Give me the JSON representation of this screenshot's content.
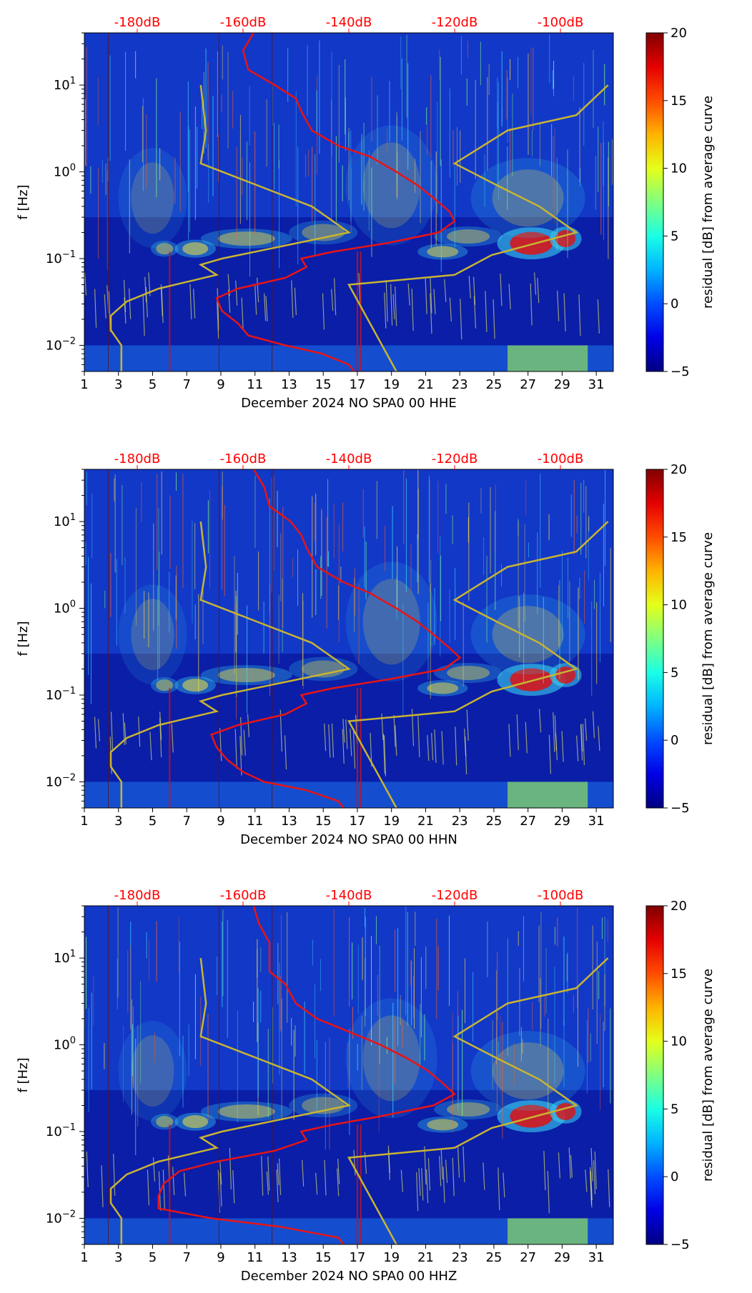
{
  "figure": {
    "colorbar_ticks": [
      "−5",
      "0",
      "5",
      "10",
      "15",
      "20"
    ],
    "y_ticks": [
      {
        "base": "10",
        "exp": "−2"
      },
      {
        "base": "10",
        "exp": "−1"
      },
      {
        "base": "10",
        "exp": "0"
      },
      {
        "base": "10",
        "exp": "1"
      }
    ],
    "colors": {
      "psd_curve": "#e81414",
      "noise_model": "#c8b432",
      "top_axis_label": "#ff0000"
    }
  },
  "chart_data": [
    {
      "type": "heatmap",
      "title": "",
      "xlabel": "December 2024 NO SPA0 00 HHE",
      "ylabel": "f [Hz]",
      "colorbar_label": "residual [dB] from average curve",
      "clim": [
        -5,
        20
      ],
      "xlim": [
        1,
        32
      ],
      "ylim": [
        0.005,
        40
      ],
      "yscale": "log",
      "x_tick_labels": [
        "1",
        "3",
        "5",
        "7",
        "9",
        "11",
        "13",
        "15",
        "17",
        "19",
        "21",
        "23",
        "25",
        "27",
        "29",
        "31"
      ],
      "top_axis_labels": [
        "-180dB",
        "-160dB",
        "-140dB",
        "-120dB",
        "-100dB"
      ],
      "top_axis_db_range": [
        -190,
        -90
      ],
      "psd_curve": {
        "freq": [
          40,
          25,
          15,
          10,
          7,
          5,
          3,
          2,
          1.5,
          1,
          0.7,
          0.5,
          0.35,
          0.27,
          0.2,
          0.15,
          0.12,
          0.1,
          0.08,
          0.06,
          0.045,
          0.035,
          0.025,
          0.018,
          0.013,
          0.01,
          0.008,
          0.006,
          0.005
        ],
        "db": [
          -158,
          -160,
          -159,
          -154,
          -150,
          -149,
          -147,
          -142,
          -136,
          -131,
          -127,
          -124,
          -121,
          -120,
          -123,
          -133,
          -143,
          -149,
          -148,
          -152,
          -161,
          -165,
          -164,
          -161,
          -159,
          -152,
          -145,
          -140,
          -139
        ]
      },
      "noise_models": [
        {
          "name": "low",
          "freq": [
            10,
            3,
            1.25,
            0.4,
            0.2,
            0.1,
            0.085,
            0.065,
            0.045,
            0.032,
            0.022,
            0.015,
            0.01,
            0.005
          ],
          "db": [
            -168,
            -167,
            -168,
            -147,
            -140,
            -164,
            -168,
            -165,
            -176,
            -182,
            -185,
            -185,
            -183,
            -183
          ]
        },
        {
          "name": "high",
          "freq": [
            10,
            4.5,
            3,
            1.25,
            0.7,
            0.4,
            0.2,
            0.11,
            0.065,
            0.05,
            0.005
          ],
          "db": [
            -91,
            -97,
            -110,
            -120,
            -112,
            -104,
            -97,
            -113,
            -120,
            -140,
            -131
          ]
        }
      ]
    },
    {
      "type": "heatmap",
      "title": "",
      "xlabel": "December 2024 NO SPA0 00 HHN",
      "ylabel": "f [Hz]",
      "colorbar_label": "residual [dB] from average curve",
      "clim": [
        -5,
        20
      ],
      "xlim": [
        1,
        32
      ],
      "ylim": [
        0.005,
        40
      ],
      "yscale": "log",
      "x_tick_labels": [
        "1",
        "3",
        "5",
        "7",
        "9",
        "11",
        "13",
        "15",
        "17",
        "19",
        "21",
        "23",
        "25",
        "27",
        "29",
        "31"
      ],
      "top_axis_labels": [
        "-180dB",
        "-160dB",
        "-140dB",
        "-120dB",
        "-100dB"
      ],
      "top_axis_db_range": [
        -190,
        -90
      ],
      "psd_curve": {
        "freq": [
          40,
          25,
          15,
          10,
          7,
          5,
          3,
          2,
          1.5,
          1,
          0.7,
          0.5,
          0.35,
          0.27,
          0.2,
          0.15,
          0.12,
          0.1,
          0.08,
          0.06,
          0.045,
          0.035,
          0.025,
          0.018,
          0.013,
          0.01,
          0.008,
          0.006,
          0.005
        ],
        "db": [
          -158,
          -156,
          -155,
          -151,
          -149,
          -148,
          -146,
          -141,
          -136,
          -131,
          -127,
          -124,
          -121,
          -119,
          -122,
          -133,
          -143,
          -149,
          -148,
          -152,
          -161,
          -166,
          -165,
          -163,
          -160,
          -156,
          -148,
          -142,
          -141
        ]
      },
      "noise_models": [
        {
          "name": "low",
          "freq": [
            10,
            3,
            1.25,
            0.4,
            0.2,
            0.1,
            0.085,
            0.065,
            0.045,
            0.032,
            0.022,
            0.015,
            0.01,
            0.005
          ],
          "db": [
            -168,
            -167,
            -168,
            -147,
            -140,
            -164,
            -168,
            -165,
            -176,
            -182,
            -185,
            -185,
            -183,
            -183
          ]
        },
        {
          "name": "high",
          "freq": [
            10,
            4.5,
            3,
            1.25,
            0.7,
            0.4,
            0.2,
            0.11,
            0.065,
            0.05,
            0.005
          ],
          "db": [
            -91,
            -97,
            -110,
            -120,
            -112,
            -104,
            -97,
            -113,
            -120,
            -140,
            -131
          ]
        }
      ]
    },
    {
      "type": "heatmap",
      "title": "",
      "xlabel": "December 2024 NO SPA0 00 HHZ",
      "ylabel": "f [Hz]",
      "colorbar_label": "residual [dB] from average curve",
      "clim": [
        -5,
        20
      ],
      "xlim": [
        1,
        32
      ],
      "ylim": [
        0.005,
        40
      ],
      "yscale": "log",
      "x_tick_labels": [
        "1",
        "3",
        "5",
        "7",
        "9",
        "11",
        "13",
        "15",
        "17",
        "19",
        "21",
        "23",
        "25",
        "27",
        "29",
        "31"
      ],
      "top_axis_labels": [
        "-180dB",
        "-160dB",
        "-140dB",
        "-120dB",
        "-100dB"
      ],
      "top_axis_db_range": [
        -190,
        -90
      ],
      "psd_curve": {
        "freq": [
          40,
          25,
          15,
          10,
          7,
          5,
          3,
          2,
          1.5,
          1,
          0.7,
          0.5,
          0.35,
          0.27,
          0.2,
          0.15,
          0.12,
          0.1,
          0.08,
          0.06,
          0.045,
          0.035,
          0.025,
          0.018,
          0.013,
          0.01,
          0.008,
          0.006,
          0.005
        ],
        "db": [
          -158,
          -157,
          -155,
          -155,
          -155,
          -152,
          -150,
          -146,
          -141,
          -134,
          -129,
          -125,
          -122,
          -120,
          -124,
          -134,
          -143,
          -149,
          -148,
          -154,
          -165,
          -172,
          -175,
          -176,
          -176,
          -166,
          -153,
          -142,
          -141
        ]
      },
      "noise_models": [
        {
          "name": "low",
          "freq": [
            10,
            3,
            1.25,
            0.4,
            0.2,
            0.1,
            0.085,
            0.065,
            0.045,
            0.032,
            0.022,
            0.015,
            0.01,
            0.005
          ],
          "db": [
            -168,
            -167,
            -168,
            -147,
            -140,
            -164,
            -168,
            -165,
            -176,
            -182,
            -185,
            -185,
            -183,
            -183
          ]
        },
        {
          "name": "high",
          "freq": [
            10,
            4.5,
            3,
            1.25,
            0.7,
            0.4,
            0.2,
            0.11,
            0.065,
            0.05,
            0.005
          ],
          "db": [
            -91,
            -97,
            -110,
            -120,
            -112,
            -104,
            -97,
            -113,
            -120,
            -140,
            -131
          ]
        }
      ]
    }
  ]
}
